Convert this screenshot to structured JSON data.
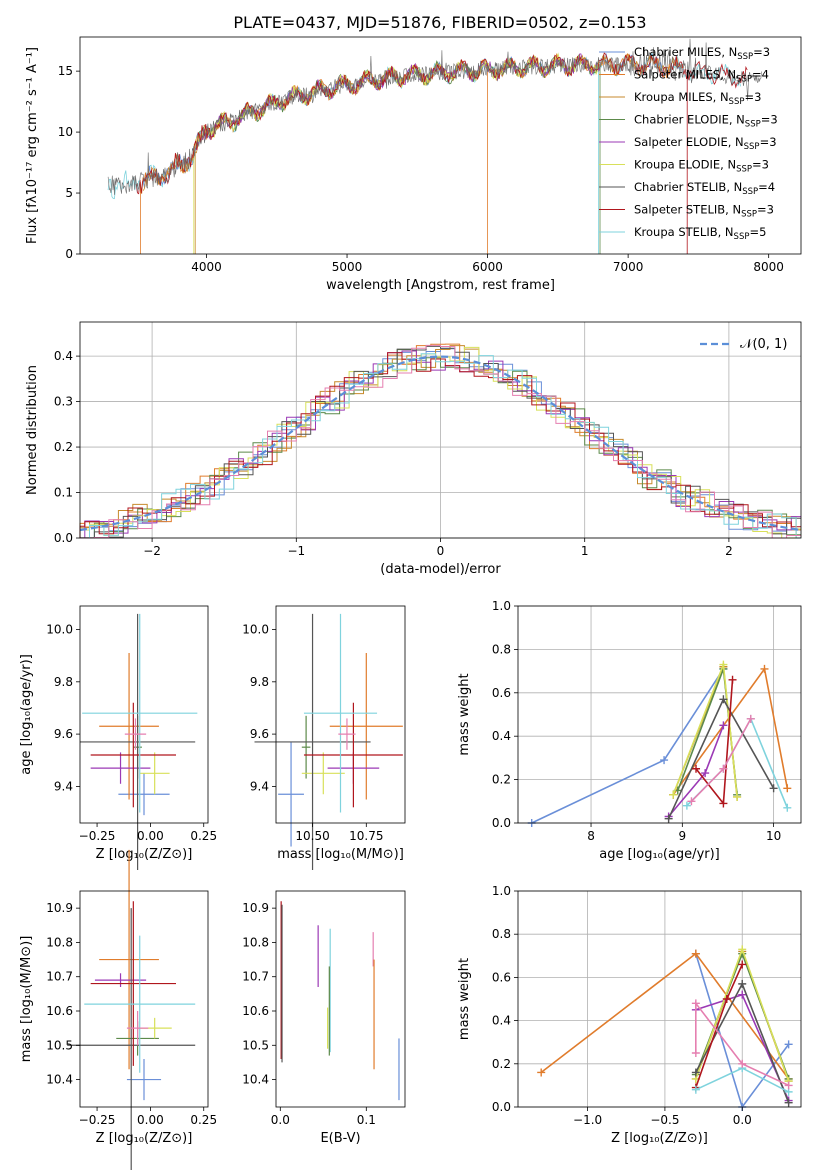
{
  "figure_title": "PLATE=0437, MJD=51876, FIBERID=0502, z=0.153",
  "colors": {
    "Chabrier MILES": "#6a8fd8",
    "Salpeter MILES": "#e07c2c",
    "Kroupa MILES": "#c78a2c",
    "Chabrier ELODIE": "#5c8a4a",
    "Salpeter ELODIE": "#9b39b5",
    "Kroupa ELODIE": "#d8e05a",
    "Chabrier STELIB": "#555555",
    "Salpeter STELIB": "#b0161d",
    "Kroupa STELIB": "#7fd3dd",
    "Pink": "#e57fb0",
    "Normal": "#5b8fd8"
  },
  "legend_spectrum": [
    {
      "key": "Chabrier MILES",
      "main": "Chabrier MILES, N",
      "sub": "SSP",
      "tail": "=3"
    },
    {
      "key": "Salpeter MILES",
      "main": "Salpeter MILES, N",
      "sub": "SSP",
      "tail": "=4"
    },
    {
      "key": "Kroupa MILES",
      "main": "Kroupa MILES, N",
      "sub": "SSP",
      "tail": "=3"
    },
    {
      "key": "Chabrier ELODIE",
      "main": "Chabrier ELODIE, N",
      "sub": "SSP",
      "tail": "=3"
    },
    {
      "key": "Salpeter ELODIE",
      "main": "Salpeter ELODIE, N",
      "sub": "SSP",
      "tail": "=3"
    },
    {
      "key": "Kroupa ELODIE",
      "main": "Kroupa ELODIE, N",
      "sub": "SSP",
      "tail": "=3"
    },
    {
      "key": "Chabrier STELIB",
      "main": "Chabrier STELIB, N",
      "sub": "SSP",
      "tail": "=4"
    },
    {
      "key": "Salpeter STELIB",
      "main": "Salpeter STELIB, N",
      "sub": "SSP",
      "tail": "=3"
    },
    {
      "key": "Kroupa STELIB",
      "main": "Kroupa STELIB, N",
      "sub": "SSP",
      "tail": "=5"
    }
  ],
  "chart_data": [
    {
      "id": "spectrum",
      "type": "line",
      "xlabel": "wavelength [Angstrom, rest frame]",
      "ylabel": "Flux [fλ10⁻¹⁷ erg cm⁻² s⁻¹ A⁻¹]",
      "xlim": [
        3100,
        8230
      ],
      "ylim": [
        0,
        17.8
      ],
      "xticks": [
        4000,
        5000,
        6000,
        7000,
        8000
      ],
      "yticks": [
        0,
        5,
        10,
        15
      ],
      "continuum_x": [
        3300,
        3500,
        3700,
        3900,
        4000,
        4200,
        4400,
        4600,
        4800,
        5000,
        5200,
        5400,
        5600,
        5800,
        6000,
        6200,
        6400,
        6600,
        6800,
        7000,
        7200,
        7400,
        7600,
        7800
      ],
      "continuum_y": [
        5.6,
        5.8,
        6.5,
        8.0,
        10.2,
        11.0,
        12.0,
        12.8,
        13.4,
        13.9,
        14.3,
        14.6,
        14.8,
        15.0,
        15.1,
        15.3,
        15.4,
        15.5,
        15.5,
        15.6,
        15.5,
        15.2,
        14.8,
        14.4
      ],
      "grid": false
    },
    {
      "id": "residuals",
      "type": "histogram",
      "xlabel": "(data-model)/error",
      "ylabel": "Normed distribution",
      "xlim": [
        -2.5,
        2.5
      ],
      "ylim": [
        0,
        0.475
      ],
      "xticks": [
        -2,
        -1,
        0,
        1,
        2
      ],
      "yticks": [
        0.0,
        0.1,
        0.2,
        0.3,
        0.4
      ],
      "legend": "𝒩(0, 1)",
      "reference_curve": "normal(0,1)",
      "grid": true
    },
    {
      "id": "age_vs_Z",
      "type": "errorbar",
      "xlabel": "Z [log₁₀(Z/Z⊙)]",
      "ylabel": "age  [log₁₀(age/yr)]",
      "xlim": [
        -0.33,
        0.27
      ],
      "ylim": [
        9.26,
        10.09
      ],
      "xticks": [
        -0.25,
        0.0,
        0.25
      ],
      "yticks": [
        9.4,
        9.6,
        9.8,
        10.0
      ],
      "points": [
        {
          "key": "Chabrier MILES",
          "x": -0.03,
          "xerr": 0.12,
          "y": 9.37,
          "yerr": 0.08
        },
        {
          "key": "Salpeter MILES",
          "x": -0.1,
          "xerr": 0.14,
          "y": 9.63,
          "yerr": 0.28
        },
        {
          "key": "Chabrier ELODIE",
          "x": -0.06,
          "xerr": 0.02,
          "y": 9.55,
          "yerr": 0.12
        },
        {
          "key": "Salpeter ELODIE",
          "x": -0.14,
          "xerr": 0.14,
          "y": 9.47,
          "yerr": 0.06
        },
        {
          "key": "Kroupa ELODIE",
          "x": 0.02,
          "xerr": 0.07,
          "y": 9.45,
          "yerr": 0.08
        },
        {
          "key": "Chabrier STELIB",
          "x": -0.06,
          "xerr": 0.27,
          "y": 9.57,
          "yerr": 0.49
        },
        {
          "key": "Salpeter STELIB",
          "x": -0.08,
          "xerr": 0.2,
          "y": 9.52,
          "yerr": 0.2
        },
        {
          "key": "Kroupa STELIB",
          "x": -0.05,
          "xerr": 0.27,
          "y": 9.68,
          "yerr": 0.38
        },
        {
          "key": "Pink",
          "x": -0.07,
          "xerr": 0.05,
          "y": 9.6,
          "yerr": 0.06
        }
      ]
    },
    {
      "id": "age_vs_mass",
      "type": "errorbar",
      "xlabel": "mass [log₁₀(M/M⊙)]",
      "ylabel": "",
      "xlim": [
        10.33,
        10.93
      ],
      "ylim": [
        9.26,
        10.09
      ],
      "xticks": [
        10.5,
        10.75
      ],
      "yticks": [
        9.4,
        9.6,
        9.8,
        10.0
      ],
      "points": [
        {
          "key": "Chabrier MILES",
          "x": 10.4,
          "xerr": 0.06,
          "y": 9.37,
          "yerr": 0.2
        },
        {
          "key": "Salpeter MILES",
          "x": 10.75,
          "xerr": 0.17,
          "y": 9.63,
          "yerr": 0.28
        },
        {
          "key": "Chabrier ELODIE",
          "x": 10.47,
          "xerr": 0.02,
          "y": 9.55,
          "yerr": 0.12
        },
        {
          "key": "Salpeter ELODIE",
          "x": 10.69,
          "xerr": 0.12,
          "y": 9.47,
          "yerr": 0.06
        },
        {
          "key": "Kroupa ELODIE",
          "x": 10.55,
          "xerr": 0.1,
          "y": 9.45,
          "yerr": 0.08
        },
        {
          "key": "Chabrier STELIB",
          "x": 10.5,
          "xerr": 0.27,
          "y": 9.57,
          "yerr": 0.49
        },
        {
          "key": "Salpeter STELIB",
          "x": 10.69,
          "xerr": 0.23,
          "y": 9.52,
          "yerr": 0.2
        },
        {
          "key": "Kroupa STELIB",
          "x": 10.63,
          "xerr": 0.17,
          "y": 9.68,
          "yerr": 0.38
        },
        {
          "key": "Pink",
          "x": 10.66,
          "xerr": 0.04,
          "y": 9.6,
          "yerr": 0.06
        }
      ]
    },
    {
      "id": "weight_vs_age",
      "type": "line",
      "xlabel": "age  [log₁₀(age/yr)]",
      "ylabel": "mass weight",
      "xlim": [
        7.2,
        10.3
      ],
      "ylim": [
        0.0,
        1.0
      ],
      "xticks": [
        8,
        9,
        10
      ],
      "yticks": [
        0.0,
        0.2,
        0.4,
        0.6,
        0.8,
        1.0
      ],
      "grid": true,
      "series": [
        {
          "key": "Chabrier MILES",
          "x": [
            7.35,
            8.8,
            9.45
          ],
          "y": [
            0.0,
            0.29,
            0.71
          ]
        },
        {
          "key": "Salpeter MILES",
          "x": [
            8.9,
            9.9,
            10.15
          ],
          "y": [
            0.13,
            0.71,
            0.16
          ]
        },
        {
          "key": "Kroupa MILES",
          "x": [
            8.9,
            9.45,
            9.6
          ],
          "y": [
            0.13,
            0.72,
            0.12
          ]
        },
        {
          "key": "Chabrier ELODIE",
          "x": [
            8.95,
            9.45,
            9.6
          ],
          "y": [
            0.15,
            0.71,
            0.13
          ]
        },
        {
          "key": "Salpeter ELODIE",
          "x": [
            8.85,
            9.25,
            9.45
          ],
          "y": [
            0.03,
            0.23,
            0.45
          ]
        },
        {
          "key": "Kroupa ELODIE",
          "x": [
            8.9,
            9.45,
            9.6
          ],
          "y": [
            0.13,
            0.73,
            0.12
          ]
        },
        {
          "key": "Chabrier STELIB",
          "x": [
            8.85,
            9.45,
            10.0
          ],
          "y": [
            0.02,
            0.57,
            0.16
          ]
        },
        {
          "key": "Salpeter STELIB",
          "x": [
            9.15,
            9.45,
            9.55
          ],
          "y": [
            0.25,
            0.09,
            0.66
          ]
        },
        {
          "key": "Kroupa STELIB",
          "x": [
            9.05,
            9.45,
            9.75,
            10.15
          ],
          "y": [
            0.08,
            0.25,
            0.48,
            0.07
          ]
        },
        {
          "key": "Pink",
          "x": [
            9.1,
            9.45,
            9.75
          ],
          "y": [
            0.1,
            0.25,
            0.48
          ]
        }
      ]
    },
    {
      "id": "mass_vs_Z",
      "type": "errorbar",
      "xlabel": "Z [log₁₀(Z/Z⊙)]",
      "ylabel": "mass [log₁₀(M/M⊙)]",
      "xlim": [
        -0.33,
        0.27
      ],
      "ylim": [
        10.32,
        10.95
      ],
      "xticks": [
        -0.25,
        0.0,
        0.25
      ],
      "yticks": [
        10.4,
        10.5,
        10.6,
        10.7,
        10.8,
        10.9
      ],
      "points": [
        {
          "key": "Chabrier MILES",
          "x": -0.03,
          "xerr": 0.08,
          "y": 10.4,
          "yerr": 0.06
        },
        {
          "key": "Salpeter MILES",
          "x": -0.1,
          "xerr": 0.14,
          "y": 10.75,
          "yerr": 0.32
        },
        {
          "key": "Chabrier ELODIE",
          "x": -0.06,
          "xerr": 0.1,
          "y": 10.52,
          "yerr": 0.05
        },
        {
          "key": "Salpeter ELODIE",
          "x": -0.14,
          "xerr": 0.12,
          "y": 10.69,
          "yerr": 0.02
        },
        {
          "key": "Kroupa ELODIE",
          "x": 0.02,
          "xerr": 0.08,
          "y": 10.55,
          "yerr": 0.03
        },
        {
          "key": "Chabrier STELIB",
          "x": -0.09,
          "xerr": 0.3,
          "y": 10.5,
          "yerr": 0.4
        },
        {
          "key": "Salpeter STELIB",
          "x": -0.08,
          "xerr": 0.2,
          "y": 10.68,
          "yerr": 0.24
        },
        {
          "key": "Kroupa STELIB",
          "x": -0.05,
          "xerr": 0.26,
          "y": 10.62,
          "yerr": 0.2
        },
        {
          "key": "Pink",
          "x": -0.06,
          "xerr": 0.05,
          "y": 10.55,
          "yerr": 0.05
        }
      ]
    },
    {
      "id": "mass_vs_ebv",
      "type": "errorbar",
      "xlabel": "E(B-V)",
      "ylabel": "",
      "xlim": [
        -0.005,
        0.145
      ],
      "ylim": [
        10.32,
        10.95
      ],
      "xticks": [
        0.0,
        0.1
      ],
      "yticks": [
        10.4,
        10.5,
        10.6,
        10.7,
        10.8,
        10.9
      ],
      "points": [
        {
          "key": "Salpeter STELIB",
          "x": 0.001,
          "yerr": 0.23,
          "y": 10.69
        },
        {
          "key": "Chabrier STELIB",
          "x": 0.002,
          "yerr": 0.23,
          "y": 10.68
        },
        {
          "key": "Salpeter ELODIE",
          "x": 0.044,
          "yerr": 0.09,
          "y": 10.76
        },
        {
          "key": "Kroupa ELODIE",
          "x": 0.055,
          "yerr": 0.06,
          "y": 10.55
        },
        {
          "key": "Kroupa STELIB",
          "x": 0.058,
          "yerr": 0.18,
          "y": 10.66
        },
        {
          "key": "Chabrier ELODIE",
          "x": 0.057,
          "yerr": 0.13,
          "y": 10.6
        },
        {
          "key": "Pink",
          "x": 0.108,
          "yerr": 0.05,
          "y": 10.78
        },
        {
          "key": "Salpeter MILES",
          "x": 0.109,
          "yerr": 0.16,
          "y": 10.59
        },
        {
          "key": "Chabrier MILES",
          "x": 0.138,
          "yerr": 0.09,
          "y": 10.43
        }
      ]
    },
    {
      "id": "weight_vs_Z",
      "type": "line",
      "xlabel": "Z [log₁₀(Z/Z⊙)]",
      "ylabel": "mass weight",
      "xlim": [
        -1.45,
        0.38
      ],
      "ylim": [
        0.0,
        1.0
      ],
      "xticks": [
        -1.0,
        -0.5,
        0.0
      ],
      "yticks": [
        0.0,
        0.2,
        0.4,
        0.6,
        0.8,
        1.0
      ],
      "grid": true,
      "series": [
        {
          "key": "Chabrier MILES",
          "x": [
            -0.3,
            0.0,
            0.3
          ],
          "y": [
            0.71,
            0.0,
            0.29
          ]
        },
        {
          "key": "Salpeter MILES",
          "x": [
            -1.3,
            -0.3,
            0.3
          ],
          "y": [
            0.16,
            0.71,
            0.13
          ]
        },
        {
          "key": "Kroupa MILES",
          "x": [
            -0.3,
            0.0,
            0.3
          ],
          "y": [
            0.13,
            0.72,
            0.12
          ]
        },
        {
          "key": "Chabrier ELODIE",
          "x": [
            -0.3,
            0.0,
            0.3
          ],
          "y": [
            0.15,
            0.71,
            0.13
          ]
        },
        {
          "key": "Salpeter ELODIE",
          "x": [
            -0.3,
            0.0,
            0.3
          ],
          "y": [
            0.45,
            0.52,
            0.03
          ]
        },
        {
          "key": "Kroupa ELODIE",
          "x": [
            -0.3,
            0.0,
            0.3
          ],
          "y": [
            0.13,
            0.73,
            0.12
          ]
        },
        {
          "key": "Chabrier STELIB",
          "x": [
            -0.3,
            0.0,
            0.3
          ],
          "y": [
            0.16,
            0.57,
            0.02
          ]
        },
        {
          "key": "Salpeter STELIB",
          "x": [
            -0.3,
            -0.1,
            0.0
          ],
          "y": [
            0.09,
            0.5,
            0.66
          ]
        },
        {
          "key": "Kroupa STELIB",
          "x": [
            -0.3,
            0.0,
            0.3
          ],
          "y": [
            0.08,
            0.18,
            0.07
          ]
        },
        {
          "key": "Pink",
          "x": [
            -0.3,
            -0.3,
            0.0,
            0.3
          ],
          "y": [
            0.25,
            0.48,
            0.2,
            0.1
          ]
        }
      ]
    }
  ]
}
